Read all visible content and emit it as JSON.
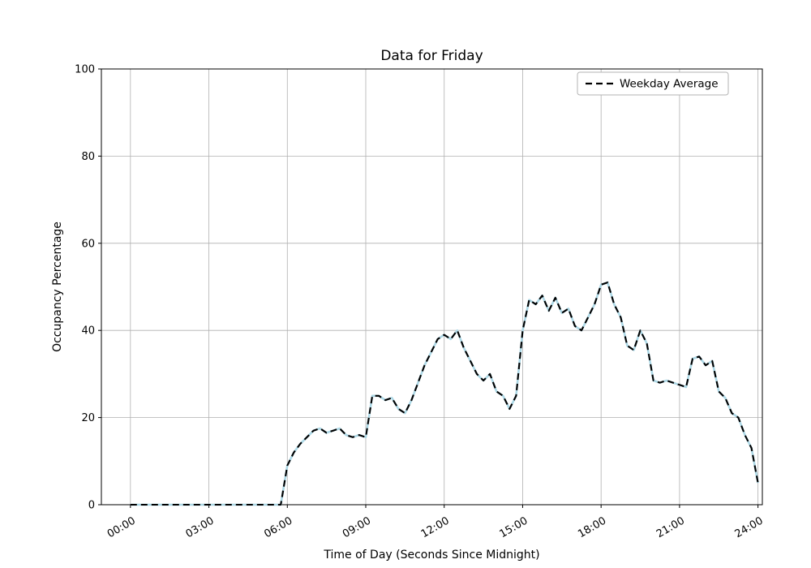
{
  "chart_data": {
    "type": "line",
    "title": "Data for Friday",
    "xlabel": "Time of Day (Seconds Since Midnight)",
    "ylabel": "Occupancy Percentage",
    "xlim": [
      -4000,
      87000
    ],
    "ylim": [
      0,
      100
    ],
    "grid": true,
    "legend_position": "upper right",
    "style": {
      "grid_color": "#b0b0b0",
      "background": "#ffffff",
      "spine_color": "#000000"
    },
    "yticks": [
      0,
      20,
      40,
      60,
      80,
      100
    ],
    "xticks": [
      {
        "value": 0,
        "label": "00:00"
      },
      {
        "value": 10800,
        "label": "03:00"
      },
      {
        "value": 21600,
        "label": "06:00"
      },
      {
        "value": 32400,
        "label": "09:00"
      },
      {
        "value": 43200,
        "label": "12:00"
      },
      {
        "value": 54000,
        "label": "15:00"
      },
      {
        "value": 64800,
        "label": "18:00"
      },
      {
        "value": 75600,
        "label": "21:00"
      },
      {
        "value": 86400,
        "label": "24:00"
      }
    ],
    "series": [
      {
        "name": "Weekday Average",
        "dashed": true,
        "color": "#000000",
        "underlay_color": "#add8e6",
        "x": [
          0,
          900,
          1800,
          2700,
          3600,
          4500,
          5400,
          6300,
          7200,
          8100,
          9000,
          9900,
          10800,
          11700,
          12600,
          13500,
          14400,
          15300,
          16200,
          17100,
          18000,
          18900,
          19800,
          20700,
          21600,
          22500,
          23400,
          24300,
          25200,
          26100,
          27000,
          27900,
          28800,
          29700,
          30600,
          31500,
          32400,
          33300,
          34200,
          35100,
          36000,
          36900,
          37800,
          38700,
          39600,
          40500,
          41400,
          42300,
          43200,
          44100,
          45000,
          45900,
          46800,
          47700,
          48600,
          49500,
          50400,
          51300,
          52200,
          53100,
          54000,
          54900,
          55800,
          56700,
          57600,
          58500,
          59400,
          60300,
          61200,
          62100,
          63000,
          63900,
          64800,
          65700,
          66600,
          67500,
          68400,
          69300,
          70200,
          71100,
          72000,
          72900,
          73800,
          74700,
          75600,
          76500,
          77400,
          78300,
          79200,
          80100,
          81000,
          81900,
          82800,
          83700,
          84600,
          85500,
          86400
        ],
        "y": [
          0,
          0,
          0,
          0,
          0,
          0,
          0,
          0,
          0,
          0,
          0,
          0,
          0,
          0,
          0,
          0,
          0,
          0,
          0,
          0,
          0,
          0,
          0,
          0,
          9,
          12,
          14,
          15.5,
          17,
          17.5,
          16.5,
          17,
          17.5,
          16,
          15.5,
          16,
          15.5,
          25,
          25,
          24,
          24.5,
          22,
          21,
          24,
          28,
          32,
          35,
          38,
          39,
          38,
          40,
          36,
          33,
          30,
          28.5,
          30,
          26,
          25,
          22,
          25,
          40,
          47,
          46,
          48,
          44.5,
          47.5,
          44,
          45,
          41,
          40,
          43,
          46,
          50.5,
          51,
          46,
          43,
          36.5,
          35.5,
          40,
          37,
          28.5,
          28,
          28.5,
          28,
          27.5,
          27,
          33.5,
          34,
          32,
          33,
          26,
          24.5,
          21,
          20,
          16,
          13,
          5
        ]
      }
    ]
  }
}
